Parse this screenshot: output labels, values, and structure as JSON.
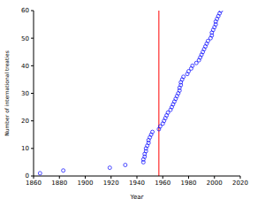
{
  "chart_data": {
    "type": "scatter",
    "x_label": "Year",
    "y_label": "Number of international treaties",
    "x": [
      1865,
      1883,
      1919,
      1931,
      1945,
      1945,
      1946,
      1946,
      1947,
      1947,
      1948,
      1949,
      1949,
      1950,
      1951,
      1952,
      1957,
      1958,
      1960,
      1961,
      1962,
      1963,
      1964,
      1966,
      1967,
      1968,
      1969,
      1970,
      1971,
      1972,
      1973,
      1973,
      1974,
      1974,
      1975,
      1976,
      1979,
      1980,
      1982,
      1983,
      1986,
      1988,
      1989,
      1990,
      1991,
      1992,
      1993,
      1994,
      1995,
      1997,
      1998,
      1998,
      1999,
      2000,
      2001,
      2001,
      2002,
      2003,
      2004,
      2005
    ],
    "values": [
      1,
      2,
      3,
      4,
      5,
      6,
      7,
      8,
      9,
      10,
      11,
      12,
      13,
      14,
      15,
      16,
      17,
      18,
      19,
      20,
      21,
      22,
      23,
      24,
      25,
      26,
      27,
      28,
      29,
      30,
      31,
      32,
      33,
      34,
      35,
      36,
      37,
      38,
      39,
      40,
      41,
      42,
      43,
      44,
      45,
      46,
      47,
      48,
      49,
      50,
      51,
      52,
      53,
      54,
      55,
      56,
      57,
      58,
      59,
      60
    ],
    "color": "#0000ff",
    "marker": "circle",
    "xlim": [
      1860,
      2020
    ],
    "xticks": [
      1860,
      1880,
      1900,
      1920,
      1940,
      1960,
      1980,
      2000,
      2020
    ],
    "ylim": [
      0,
      60
    ],
    "yticks": [
      0,
      10,
      20,
      30,
      40,
      50,
      60
    ],
    "grid": false,
    "reference_lines": [
      {
        "x": 1957,
        "color": "#ff0000"
      }
    ]
  }
}
